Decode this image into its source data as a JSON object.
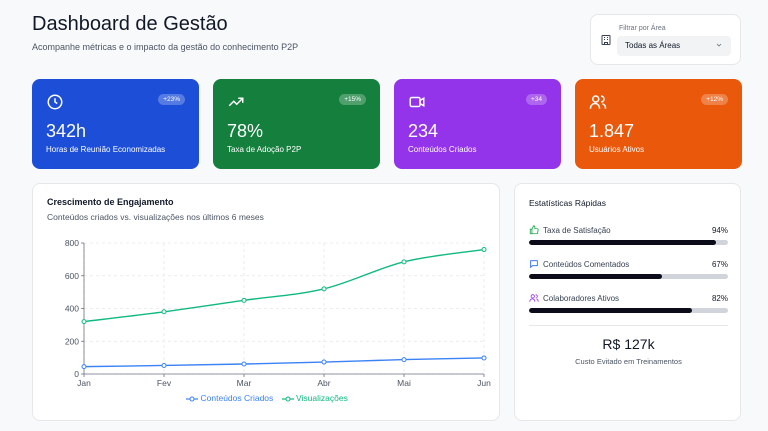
{
  "header": {
    "title": "Dashboard de Gestão",
    "subtitle": "Acompanhe métricas e o impacto da gestão do conhecimento P2P"
  },
  "filter": {
    "label": "Filtrar por Área",
    "selected": "Todas as Áreas",
    "icon": "building-icon"
  },
  "stats": [
    {
      "value": "342h",
      "label": "Horas de Reunião Economizadas",
      "badge": "+23%",
      "icon": "clock-icon",
      "color": "#1d4ed8"
    },
    {
      "value": "78%",
      "label": "Taxa de Adoção P2P",
      "badge": "+15%",
      "icon": "trending-up-icon",
      "color": "#15803d"
    },
    {
      "value": "234",
      "label": "Conteúdos Criados",
      "badge": "+34",
      "icon": "video-icon",
      "color": "#9333ea"
    },
    {
      "value": "1.847",
      "label": "Usuários Ativos",
      "badge": "+12%",
      "icon": "users-icon",
      "color": "#ea580c"
    }
  ],
  "engagement": {
    "title": "Crescimento de Engajamento",
    "subtitle": "Conteúdos criados vs. visualizações nos últimos 6 meses"
  },
  "chart_data": {
    "type": "line",
    "categories": [
      "Jan",
      "Fev",
      "Mar",
      "Abr",
      "Mai",
      "Jun"
    ],
    "series": [
      {
        "name": "Conteúdos Criados",
        "values": [
          45,
          52,
          61,
          73,
          88,
          98
        ],
        "color": "#3b82f6"
      },
      {
        "name": "Visualizações",
        "values": [
          320,
          380,
          450,
          520,
          685,
          760
        ],
        "color": "#10b981"
      }
    ],
    "yticks": [
      0,
      200,
      400,
      600,
      800
    ],
    "ylim": [
      0,
      800
    ],
    "grid": true,
    "legend_position": "bottom"
  },
  "quick_stats": {
    "title": "Estatísticas Rápidas",
    "metrics": [
      {
        "label": "Taxa de Satisfação",
        "percent_text": "94%",
        "value": 94,
        "icon": "thumbs-up-icon",
        "icon_color": "#16a34a"
      },
      {
        "label": "Conteúdos Comentados",
        "percent_text": "67%",
        "value": 67,
        "icon": "message-icon",
        "icon_color": "#2563eb"
      },
      {
        "label": "Colaboradores Ativos",
        "percent_text": "82%",
        "value": 82,
        "icon": "users-icon",
        "icon_color": "#9333ea"
      }
    ],
    "savings_value": "R$ 127k",
    "savings_label": "Custo Evitado em Treinamentos"
  }
}
